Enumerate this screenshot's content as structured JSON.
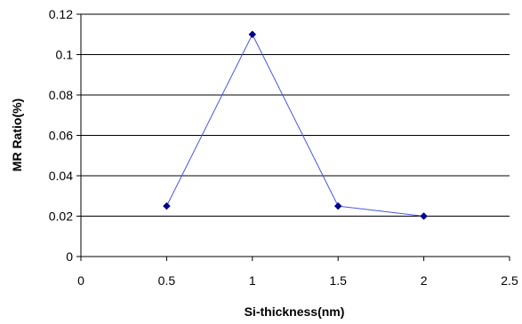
{
  "chart_data": {
    "type": "line",
    "title": "",
    "xlabel": "Si-thickness(nm)",
    "ylabel": "MR Ratio(%)",
    "xlim": [
      0,
      2.5
    ],
    "ylim": [
      0,
      0.12
    ],
    "x_ticks": [
      "0",
      "0.5",
      "1",
      "1.5",
      "2",
      "2.5"
    ],
    "y_ticks": [
      "0",
      "0.02",
      "0.04",
      "0.06",
      "0.08",
      "0.1",
      "0.12"
    ],
    "grid": "horizontal",
    "series": [
      {
        "x": [
          0.5,
          1,
          1.5,
          2
        ],
        "y": [
          0.025,
          0.11,
          0.025,
          0.02
        ],
        "line_color": "#4a55e0",
        "marker_color": "#00008b",
        "marker": "diamond"
      }
    ]
  }
}
